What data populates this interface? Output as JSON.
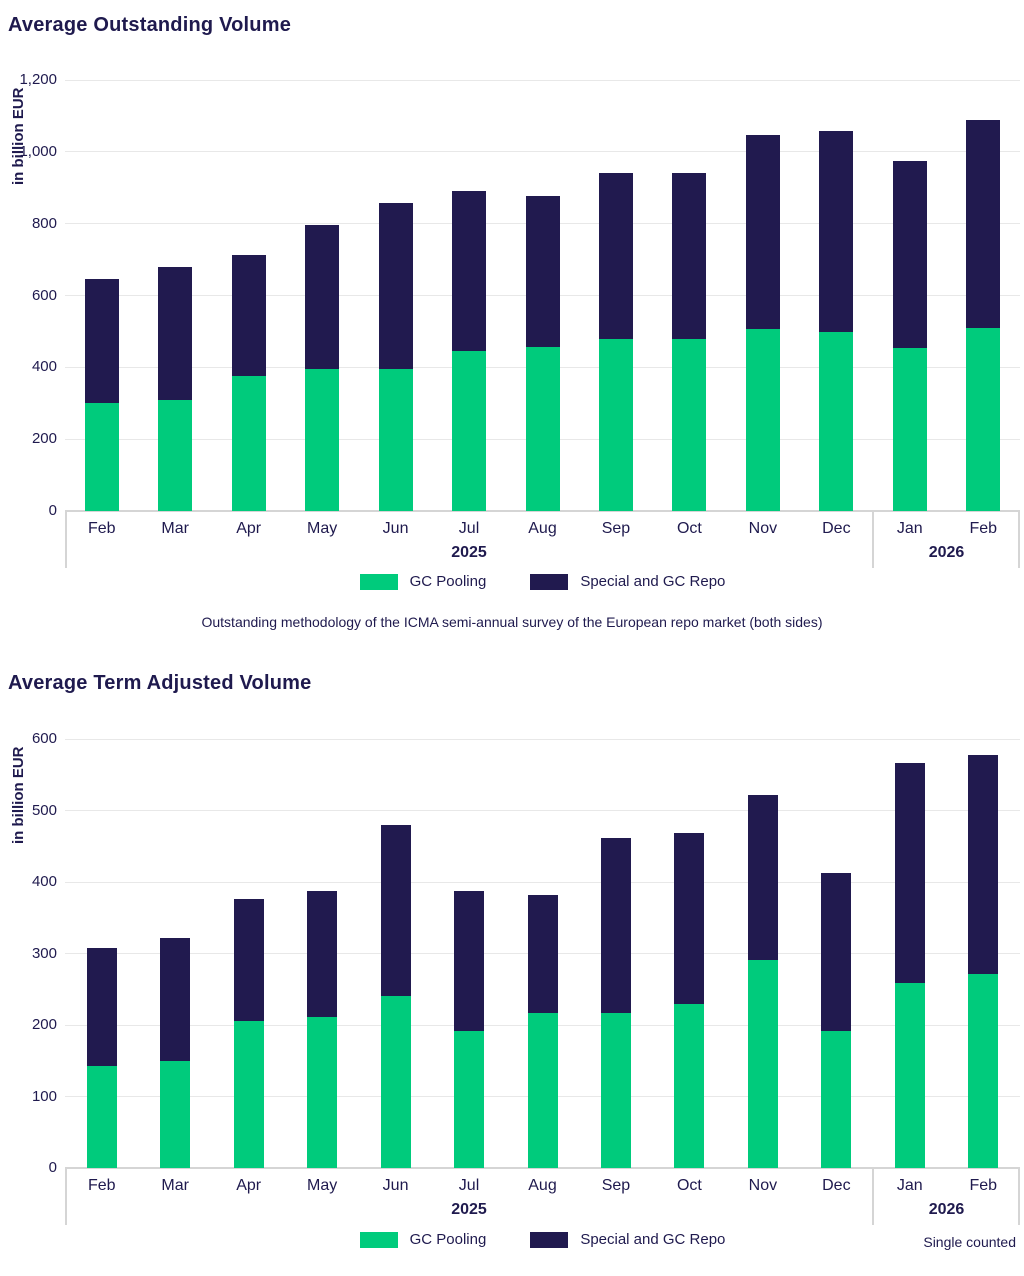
{
  "colors": {
    "gc_pooling_green": "#00cb7c",
    "special_repo_navy": "#211a4f",
    "text_navy": "#1f1a4e",
    "gridline_gray": "#e8e8e8",
    "axis_border_gray": "#d5d5d5"
  },
  "chart_data": [
    {
      "type": "bar",
      "stacked": true,
      "title": "Average Outstanding Volume",
      "ylabel": "in billion EUR",
      "ylim": [
        0,
        1200
      ],
      "ytick_step": 200,
      "ytick_labels": [
        "0",
        "200",
        "400",
        "600",
        "800",
        "1,000",
        "1,200"
      ],
      "grid": true,
      "legend_position": "bottom-center",
      "categories": [
        "Feb",
        "Mar",
        "Apr",
        "May",
        "Jun",
        "Jul",
        "Aug",
        "Sep",
        "Oct",
        "Nov",
        "Dec",
        "Jan",
        "Feb"
      ],
      "year_groups": [
        {
          "label": "2025",
          "from": 0,
          "to": 10
        },
        {
          "label": "2026",
          "from": 11,
          "to": 12
        }
      ],
      "series": [
        {
          "name": "GC Pooling",
          "color_key": "gc_pooling_green",
          "values": [
            300,
            310,
            375,
            396,
            396,
            445,
            456,
            478,
            478,
            508,
            498,
            455,
            510
          ]
        },
        {
          "name": "Special and GC Repo",
          "color_key": "special_repo_navy",
          "values": [
            346,
            370,
            337,
            399,
            462,
            445,
            422,
            464,
            464,
            539,
            559,
            519,
            580
          ]
        }
      ],
      "totals": [
        646,
        680,
        712,
        795,
        858,
        890,
        878,
        942,
        942,
        1047,
        1057,
        974,
        1090
      ],
      "footnote": "Outstanding methodology of the ICMA semi-annual survey of the European repo market (both sides)"
    },
    {
      "type": "bar",
      "stacked": true,
      "title": "Average Term Adjusted Volume",
      "ylabel": "in billion EUR",
      "ylim": [
        0,
        600
      ],
      "ytick_step": 100,
      "ytick_labels": [
        "0",
        "100",
        "200",
        "300",
        "400",
        "500",
        "600"
      ],
      "grid": true,
      "legend_position": "bottom-center",
      "categories": [
        "Feb",
        "Mar",
        "Apr",
        "May",
        "Jun",
        "Jul",
        "Aug",
        "Sep",
        "Oct",
        "Nov",
        "Dec",
        "Jan",
        "Feb"
      ],
      "year_groups": [
        {
          "label": "2025",
          "from": 0,
          "to": 10
        },
        {
          "label": "2026",
          "from": 11,
          "to": 12
        }
      ],
      "series": [
        {
          "name": "GC Pooling",
          "color_key": "gc_pooling_green",
          "values": [
            143,
            150,
            205,
            211,
            241,
            192,
            217,
            217,
            230,
            291,
            192,
            259,
            272
          ]
        },
        {
          "name": "Special and GC Repo",
          "color_key": "special_repo_navy",
          "values": [
            165,
            171,
            171,
            177,
            239,
            196,
            165,
            245,
            238,
            231,
            221,
            307,
            306
          ]
        }
      ],
      "totals": [
        308,
        321,
        376,
        388,
        480,
        388,
        382,
        462,
        468,
        522,
        413,
        566,
        578
      ],
      "note_right": "Single counted"
    }
  ]
}
